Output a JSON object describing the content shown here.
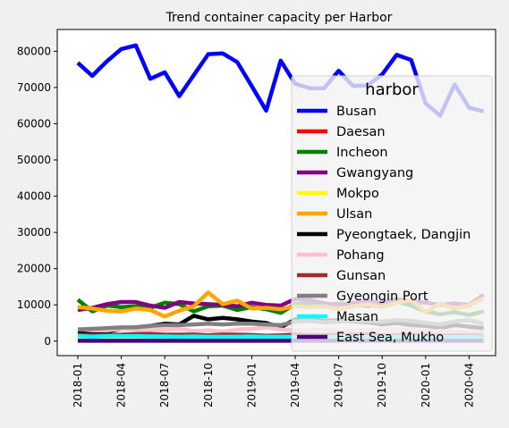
{
  "chart_data": {
    "type": "line",
    "title": "Trend container capacity per Harbor",
    "xlabel": "",
    "ylabel": "",
    "x": [
      "2018-01",
      "2018-02",
      "2018-03",
      "2018-04",
      "2018-05",
      "2018-06",
      "2018-07",
      "2018-08",
      "2018-09",
      "2018-10",
      "2018-11",
      "2018-12",
      "2019-01",
      "2019-02",
      "2019-03",
      "2019-04",
      "2019-05",
      "2019-06",
      "2019-07",
      "2019-08",
      "2019-09",
      "2019-10",
      "2019-11",
      "2019-12",
      "2020-01",
      "2020-02",
      "2020-03",
      "2020-04",
      "2020-05"
    ],
    "x_tick_labels": [
      "2018-01",
      "2018-04",
      "2018-07",
      "2018-10",
      "2019-01",
      "2019-04",
      "2019-07",
      "2019-10",
      "2020-01",
      "2020-04"
    ],
    "ylim": [
      -4000,
      86000
    ],
    "y_ticks": [
      0,
      10000,
      20000,
      30000,
      40000,
      50000,
      60000,
      70000,
      80000
    ],
    "legend": {
      "title": "harbor",
      "position": "center-right"
    },
    "series": [
      {
        "name": "Busan",
        "color": "#0000ff",
        "values": [
          76800,
          73200,
          77200,
          80600,
          81600,
          72400,
          74200,
          67600,
          73400,
          79200,
          79400,
          77000,
          70400,
          63600,
          77400,
          71000,
          69800,
          69800,
          74600,
          70400,
          70600,
          73600,
          79000,
          77600,
          65600,
          62200,
          70800,
          64400,
          63400
        ]
      },
      {
        "name": "Daesan",
        "color": "#ff0000",
        "values": [
          1400,
          1400,
          1500,
          1500,
          1500,
          1400,
          1500,
          1400,
          1500,
          1500,
          1500,
          1400,
          1500,
          1400,
          1500,
          1500,
          1500,
          1400,
          1500,
          1500,
          1400,
          1500,
          1500,
          1400,
          1500,
          1400,
          1500,
          1500,
          1500
        ]
      },
      {
        "name": "Incheon",
        "color": "#008000",
        "values": [
          11400,
          8200,
          9800,
          9400,
          9600,
          9200,
          10600,
          10200,
          8200,
          9600,
          9800,
          8600,
          9400,
          8800,
          7800,
          10200,
          10400,
          9800,
          10400,
          10200,
          9600,
          10600,
          11000,
          9800,
          8200,
          7400,
          8000,
          7200,
          8200
        ]
      },
      {
        "name": "Gwangyang",
        "color": "#800080",
        "values": [
          8600,
          9200,
          10200,
          10800,
          10800,
          9800,
          9200,
          10800,
          10400,
          10200,
          10000,
          9600,
          10600,
          10000,
          9800,
          11600,
          11400,
          10400,
          10000,
          10600,
          11000,
          10600,
          11600,
          11000,
          10600,
          10000,
          10400,
          10000,
          12800
        ]
      },
      {
        "name": "Mokpo",
        "color": "#ffff00",
        "values": [
          200,
          200,
          200,
          200,
          200,
          200,
          200,
          200,
          200,
          200,
          200,
          200,
          200,
          200,
          200,
          200,
          200,
          200,
          200,
          200,
          200,
          200,
          200,
          200,
          200,
          200,
          200,
          200,
          200
        ]
      },
      {
        "name": "Ulsan",
        "color": "#ffa500",
        "values": [
          9400,
          9000,
          8400,
          8200,
          9000,
          8600,
          6800,
          8400,
          9600,
          13400,
          10200,
          11200,
          9000,
          9200,
          8800,
          9600,
          9400,
          9600,
          8800,
          9600,
          10200,
          9400,
          10600,
          11400,
          8000,
          10400,
          9000,
          9800,
          11800
        ]
      },
      {
        "name": "Pyeongtaek, Dangjin",
        "color": "#000000",
        "values": [
          2600,
          2200,
          2600,
          3400,
          3800,
          4200,
          4800,
          4600,
          7000,
          6000,
          6400,
          6000,
          5400,
          5000,
          3800,
          6000,
          6200,
          5600,
          5800,
          5400,
          5200,
          4600,
          5000,
          4400,
          4200,
          3600,
          4400,
          4000,
          3600
        ]
      },
      {
        "name": "Pohang",
        "color": "#ffc0cb",
        "values": [
          3400,
          3000,
          3000,
          3400,
          3200,
          3000,
          3200,
          3400,
          2800,
          3000,
          2600,
          3200,
          3400,
          3800,
          3200,
          3000,
          3000,
          3200,
          2800,
          3000,
          3000,
          3200,
          3200,
          3000,
          2800,
          2800,
          2600,
          2600,
          2400
        ]
      },
      {
        "name": "Gunsan",
        "color": "#a52a2a",
        "values": [
          1800,
          1600,
          1700,
          1800,
          2000,
          2000,
          1800,
          1800,
          1800,
          1600,
          1800,
          1800,
          1700,
          1500,
          1600,
          1800,
          1700,
          1700,
          1700,
          1800,
          1800,
          1600,
          1700,
          1800,
          1700,
          1500,
          1600,
          1600,
          1500
        ]
      },
      {
        "name": "Gyeongin Port",
        "color": "#808080",
        "values": [
          3200,
          3400,
          3600,
          3800,
          3800,
          4200,
          4400,
          4400,
          4600,
          4800,
          4600,
          4800,
          4800,
          4600,
          4400,
          5400,
          5600,
          5200,
          5400,
          5600,
          5600,
          5400,
          5800,
          5600,
          5000,
          4600,
          5400,
          5800,
          4800
        ]
      },
      {
        "name": "Masan",
        "color": "#00ffff",
        "values": [
          1400,
          1200,
          1400,
          1400,
          1400,
          1300,
          1300,
          1200,
          1300,
          1200,
          1200,
          1200,
          1300,
          1200,
          1200,
          1200,
          1300,
          1200,
          1200,
          1300,
          1200,
          1200,
          1200,
          1200,
          1200,
          1100,
          1100,
          1200,
          1100
        ]
      },
      {
        "name": "East Sea, Mukho",
        "color": "#4b0082",
        "values": [
          100,
          100,
          100,
          100,
          100,
          100,
          100,
          100,
          100,
          100,
          100,
          100,
          100,
          100,
          100,
          100,
          100,
          100,
          100,
          100,
          100,
          100,
          100,
          100,
          100,
          100,
          100,
          100,
          100
        ]
      }
    ]
  }
}
